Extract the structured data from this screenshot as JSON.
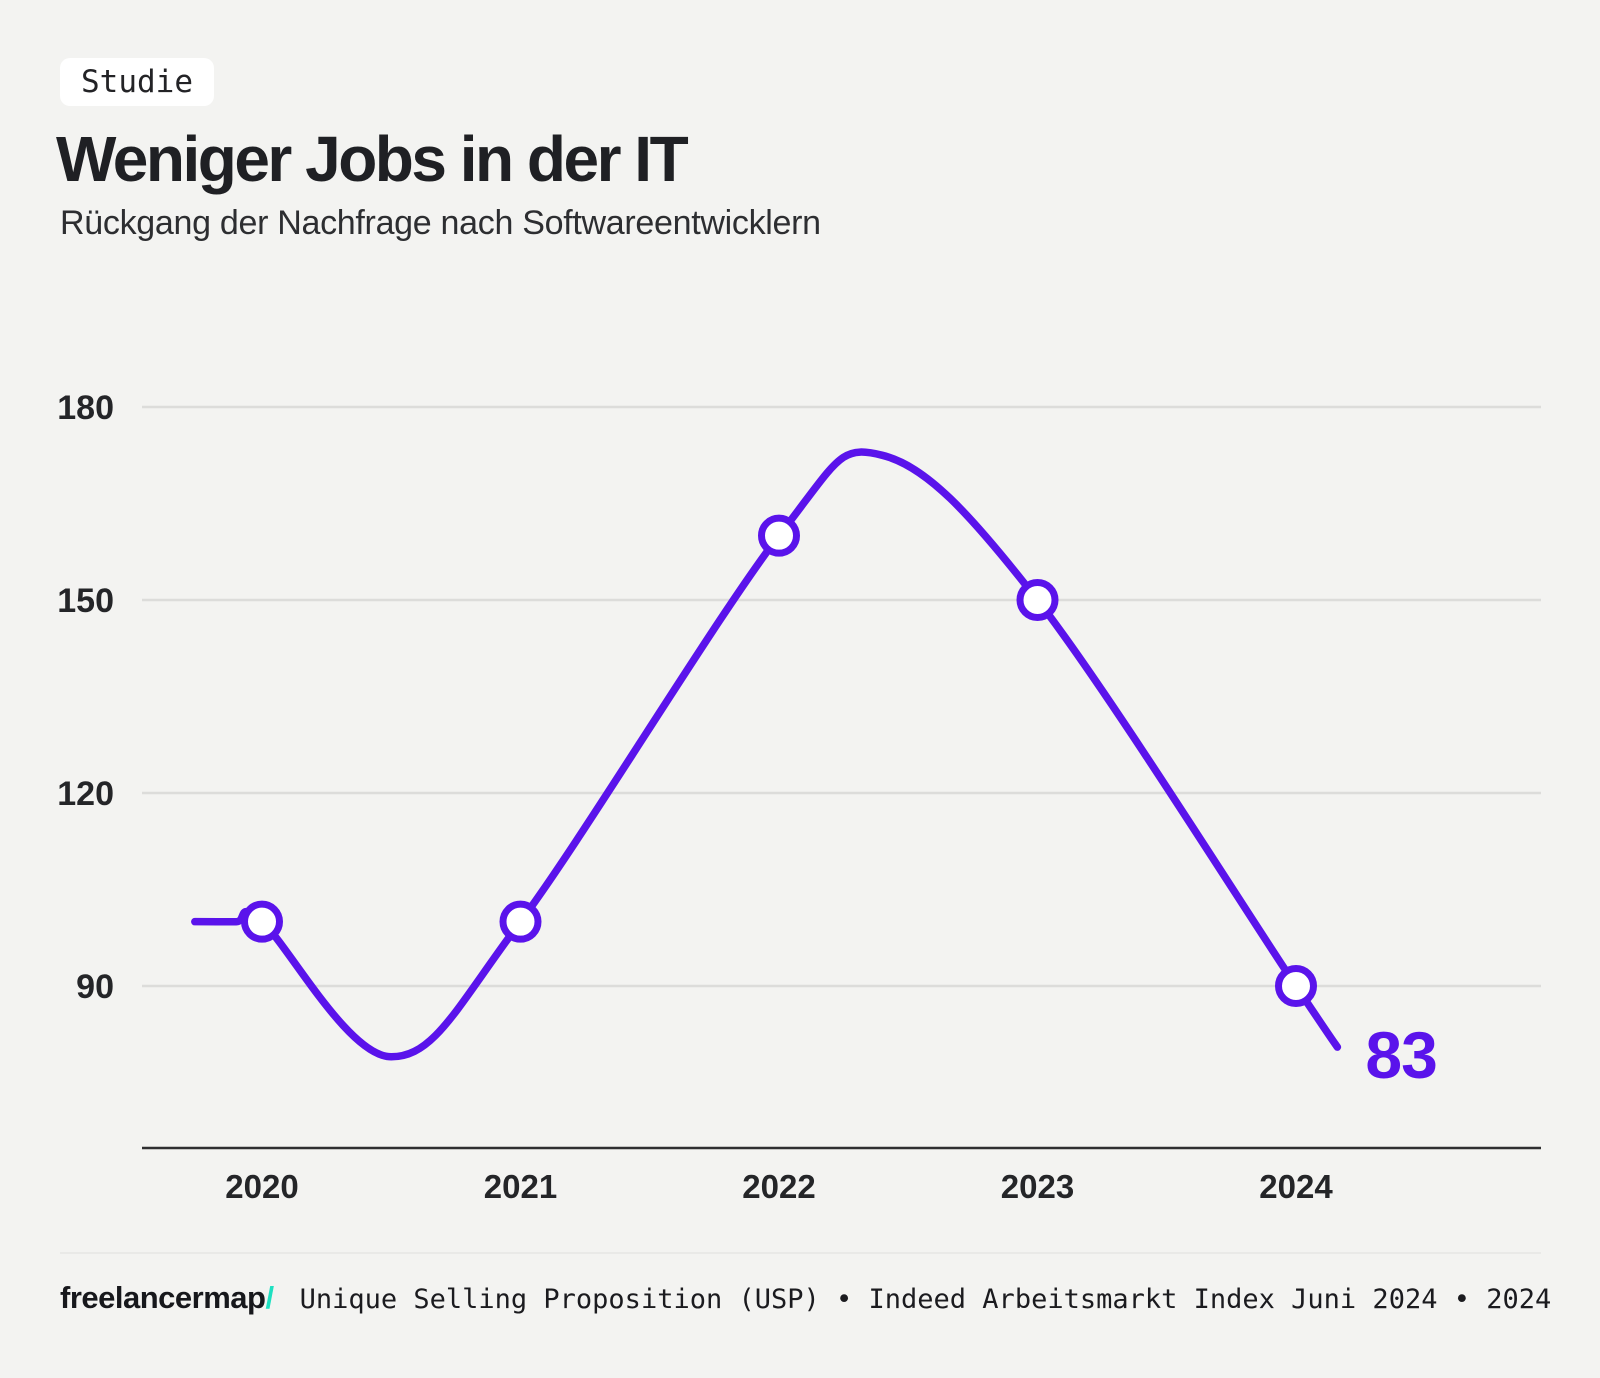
{
  "header": {
    "badge": "Studie"
  },
  "chart_data": {
    "type": "line",
    "title": "Weniger Jobs in der IT",
    "subtitle": "Rückgang der Nachfrage nach Softwareentwicklern",
    "categories": [
      2020,
      2021,
      2022,
      2023,
      2024
    ],
    "values": [
      100,
      100,
      160,
      150,
      90
    ],
    "end_label": {
      "value": 83
    },
    "y_ticks": [
      180,
      150,
      120,
      90
    ],
    "xlabel": "",
    "ylabel": "",
    "grid": "horizontal",
    "legend": false,
    "colors": {
      "line": "#5a13eb",
      "marker_fill": "#ffffff",
      "marker_ring": "#5a13eb",
      "end_label": "#5a13eb"
    },
    "curve_keypoints": [
      [
        2019.74,
        100
      ],
      [
        2019.9,
        100
      ],
      [
        2020,
        100
      ],
      [
        2020.5,
        79
      ],
      [
        2021,
        100
      ],
      [
        2022,
        160
      ],
      [
        2022.4,
        172.5
      ],
      [
        2023,
        150
      ],
      [
        2024,
        90
      ],
      [
        2024.16,
        80.5
      ]
    ]
  },
  "footer": {
    "logo_text": "freelancermap",
    "logo_slash": "/",
    "source": "Unique Selling Proposition (USP) • Indeed Arbeitsmarkt Index Juni 2024 • 2024"
  }
}
